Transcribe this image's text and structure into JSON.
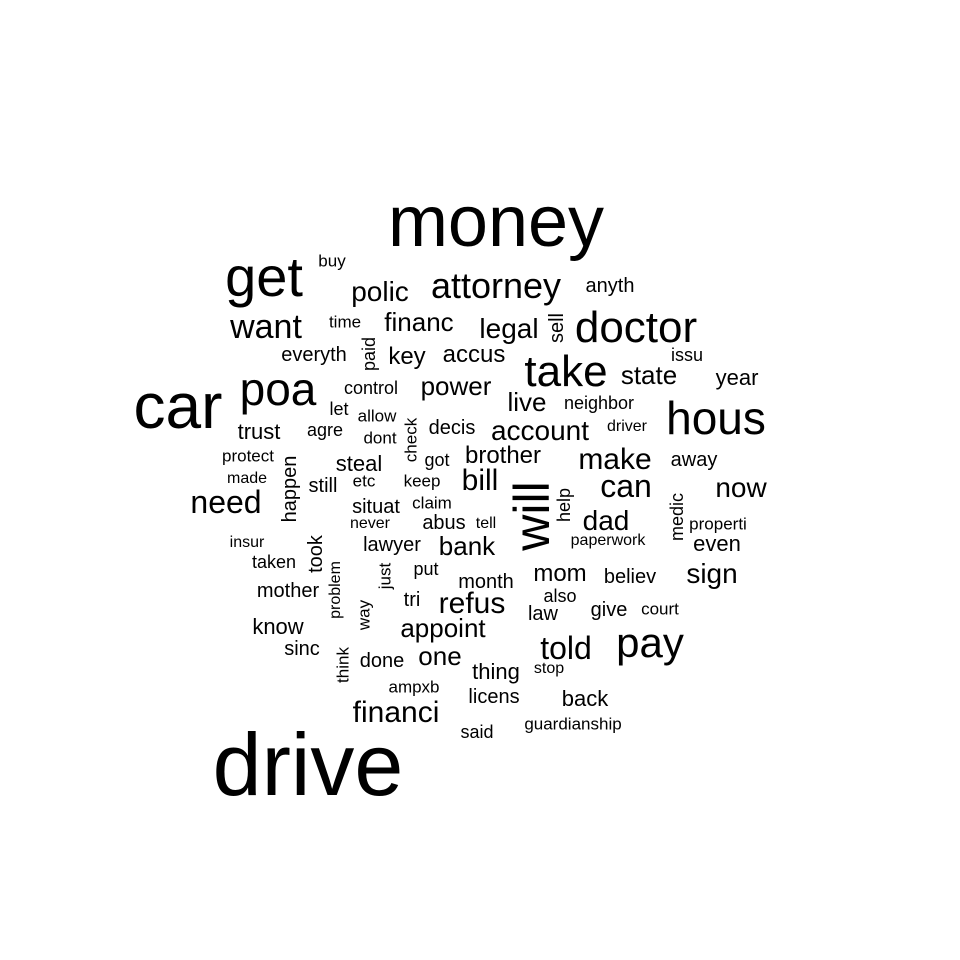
{
  "words": [
    "money",
    "drive",
    "car",
    "get",
    "poa",
    "hous",
    "doctor",
    "take",
    "will",
    "pay",
    "want",
    "attorney",
    "polic",
    "need",
    "can",
    "make",
    "told",
    "financi",
    "account",
    "refus",
    "bill",
    "sign",
    "now",
    "dad",
    "legal",
    "financ",
    "state",
    "power",
    "appoint",
    "one",
    "bank",
    "brother",
    "live",
    "mom",
    "key",
    "accus",
    "trust",
    "lawyer",
    "steal",
    "know",
    "mother",
    "year",
    "back",
    "thing",
    "licens",
    "took",
    "even",
    "away",
    "abus",
    "believ",
    "done",
    "month",
    "situat",
    "happen",
    "give",
    "decis",
    "law",
    "also",
    "everyth",
    "neighbor",
    "paid",
    "control",
    "put",
    "tri",
    "still",
    "time",
    "let",
    "agre",
    "anyth",
    "issu",
    "court",
    "sinc",
    "check",
    "claim",
    "medic",
    "help",
    "buy",
    "sell",
    "allow",
    "dont",
    "got",
    "keep",
    "etc",
    "protect",
    "made",
    "never",
    "tell",
    "properti",
    "insur",
    "taken",
    "paperwork",
    "driver",
    "problem",
    "just",
    "way",
    "think",
    "ampxb",
    "said",
    "guardianship",
    "stop"
  ]
}
